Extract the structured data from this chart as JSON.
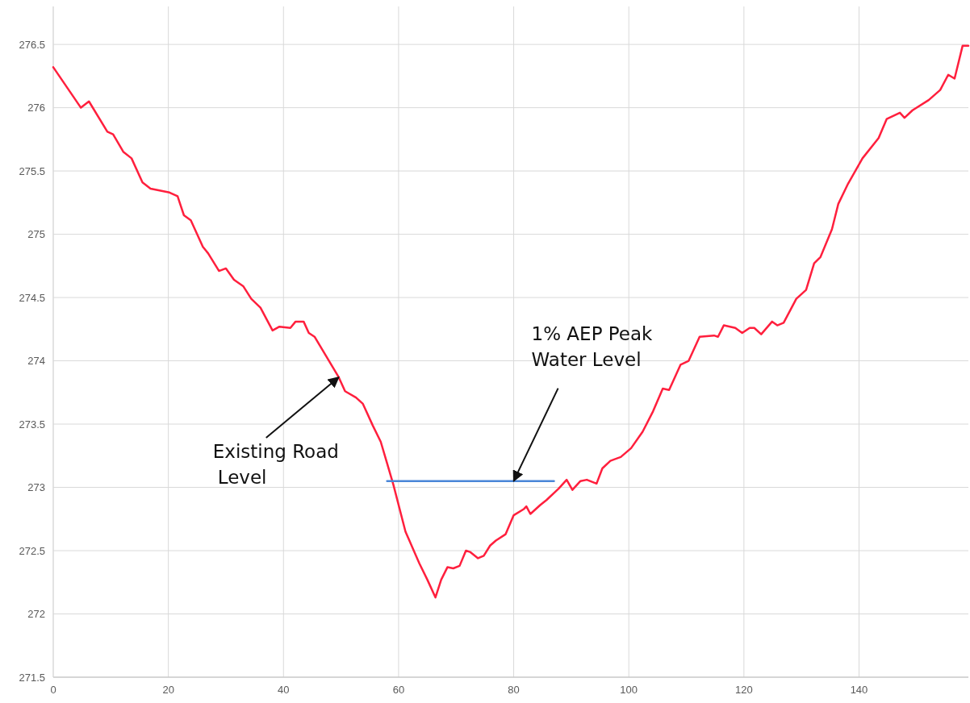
{
  "chart_data": {
    "type": "line",
    "xlim": [
      0,
      159
    ],
    "xticks": [
      0,
      20,
      40,
      60,
      80,
      100,
      120,
      140
    ],
    "ylim": [
      271.5,
      276.8
    ],
    "yticks": [
      271.5,
      272,
      272.5,
      273,
      273.5,
      274,
      274.5,
      275,
      275.5,
      276,
      276.5
    ],
    "grid": true,
    "marker": "none",
    "line_style": "solid",
    "series": [
      {
        "color": "#ff1f3d",
        "x": [
          0,
          4.8,
          6.2,
          9.4,
          10.4,
          12.2,
          13.6,
          15.5,
          16.9,
          20.2,
          21.6,
          22.7,
          23.9,
          26,
          26.9,
          28.8,
          30,
          31.4,
          33,
          34.4,
          36,
          38.1,
          39.3,
          41.2,
          42.1,
          43.5,
          44.4,
          45.4,
          49.6,
          50.7,
          52.6,
          53.8,
          55.5,
          56.9,
          58,
          59.1,
          61.2,
          63.6,
          65,
          66.4,
          67.4,
          68.5,
          69.5,
          70.6,
          71.7,
          72.4,
          73.8,
          74.8,
          75.9,
          76.9,
          78.6,
          80,
          81.8,
          82.2,
          82.9,
          84.6,
          85.7,
          87.8,
          89.2,
          90.2,
          91.6,
          92.7,
          94.4,
          95.4,
          96.8,
          98.6,
          100.4,
          102.4,
          104.2,
          105.9,
          107,
          109,
          110.4,
          112.3,
          114.8,
          115.5,
          116.5,
          118.5,
          119.7,
          121,
          121.8,
          123,
          124.9,
          125.8,
          126.9,
          129.1,
          130.8,
          132.2,
          133.3,
          135.3,
          136.4,
          138.1,
          140.6,
          143.4,
          144.8,
          147.1,
          147.9,
          149.3,
          152.1,
          154.1,
          155.5,
          156.6,
          158,
          159
        ],
        "values": [
          276.32,
          276.0,
          276.05,
          275.81,
          275.79,
          275.65,
          275.6,
          275.41,
          275.36,
          275.33,
          275.3,
          275.15,
          275.11,
          274.9,
          274.85,
          274.71,
          274.73,
          274.64,
          274.59,
          274.49,
          274.42,
          274.24,
          274.27,
          274.26,
          274.31,
          274.31,
          274.22,
          274.19,
          273.87,
          273.76,
          273.71,
          273.66,
          273.49,
          273.36,
          273.19,
          273.02,
          272.65,
          272.4,
          272.27,
          272.13,
          272.27,
          272.37,
          272.36,
          272.38,
          272.5,
          272.49,
          272.44,
          272.46,
          272.54,
          272.58,
          272.63,
          272.78,
          272.83,
          272.85,
          272.79,
          272.86,
          272.9,
          272.99,
          273.06,
          272.98,
          273.05,
          273.06,
          273.03,
          273.15,
          273.21,
          273.24,
          273.31,
          273.44,
          273.6,
          273.78,
          273.77,
          273.97,
          274.0,
          274.19,
          274.2,
          274.19,
          274.28,
          274.26,
          274.22,
          274.26,
          274.26,
          274.21,
          274.31,
          274.28,
          274.3,
          274.49,
          274.56,
          274.77,
          274.82,
          275.04,
          275.24,
          275.4,
          275.6,
          275.76,
          275.91,
          275.96,
          275.92,
          275.98,
          276.06,
          276.14,
          276.26,
          276.23,
          276.49,
          276.49
        ]
      },
      {
        "color": "#4a86d8",
        "x": [
          58,
          87
        ],
        "values": [
          273.05,
          273.05
        ]
      }
    ],
    "annotations": [
      {
        "text": "Existing Road\nLevel",
        "x": 49.6,
        "y": 273.87
      },
      {
        "text": "1% AEP Peak\nWater Level",
        "x": 80,
        "y": 273.05
      }
    ]
  }
}
